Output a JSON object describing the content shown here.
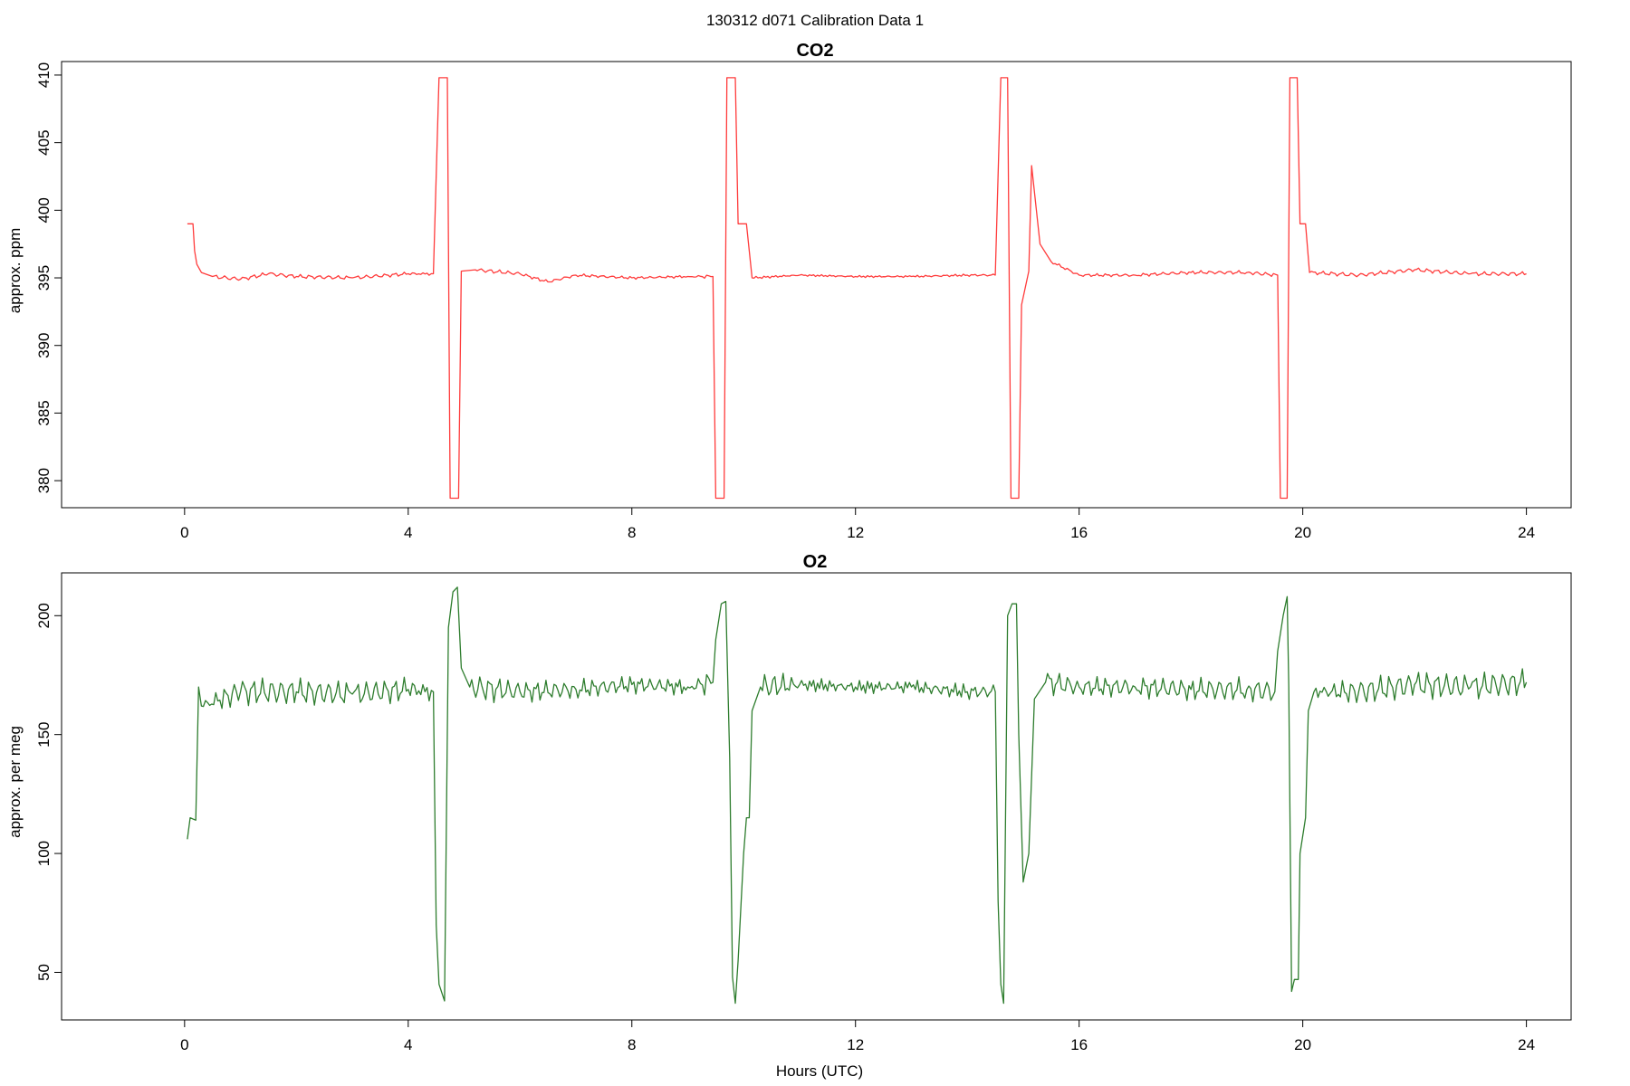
{
  "figure": {
    "suptitle": "130312   d071   Calibration Data 1"
  },
  "chart_data": [
    {
      "type": "line",
      "title": "CO2",
      "xlabel": "",
      "ylabel": "approx. ppm",
      "xlim": [
        -2.2,
        24.8
      ],
      "ylim": [
        378.0,
        411.0
      ],
      "xticks": [
        "0",
        "4",
        "8",
        "12",
        "16",
        "20",
        "24"
      ],
      "yticks": [
        "380",
        "385",
        "390",
        "395",
        "400",
        "405",
        "410"
      ],
      "grid": false,
      "legend": "none",
      "series": [
        {
          "color": "#ff3b3b",
          "points": [
            [
              0.05,
              399.0
            ],
            [
              0.15,
              399.0
            ],
            [
              0.18,
              397.0
            ],
            [
              0.22,
              396.0
            ],
            [
              0.3,
              395.4
            ],
            [
              0.5,
              395.1
            ],
            [
              1.0,
              394.9
            ],
            [
              1.5,
              395.3
            ],
            [
              2.0,
              395.1
            ],
            [
              3.0,
              395.0
            ],
            [
              4.0,
              395.3
            ],
            [
              4.45,
              395.3
            ],
            [
              4.55,
              409.8
            ],
            [
              4.7,
              409.8
            ],
            [
              4.75,
              378.7
            ],
            [
              4.9,
              378.7
            ],
            [
              4.95,
              395.5
            ],
            [
              5.2,
              395.6
            ],
            [
              6.0,
              395.3
            ],
            [
              6.5,
              394.7
            ],
            [
              7.0,
              395.2
            ],
            [
              8.0,
              395.0
            ],
            [
              9.0,
              395.1
            ],
            [
              9.45,
              395.1
            ],
            [
              9.5,
              378.7
            ],
            [
              9.65,
              378.7
            ],
            [
              9.7,
              409.8
            ],
            [
              9.85,
              409.8
            ],
            [
              9.9,
              399.0
            ],
            [
              10.05,
              399.0
            ],
            [
              10.15,
              395.0
            ],
            [
              11.0,
              395.2
            ],
            [
              12.0,
              395.1
            ],
            [
              13.0,
              395.1
            ],
            [
              14.0,
              395.2
            ],
            [
              14.5,
              395.2
            ],
            [
              14.6,
              409.8
            ],
            [
              14.72,
              409.8
            ],
            [
              14.78,
              378.7
            ],
            [
              14.92,
              378.7
            ],
            [
              14.97,
              393.0
            ],
            [
              15.1,
              395.5
            ],
            [
              15.15,
              403.3
            ],
            [
              15.3,
              397.5
            ],
            [
              15.5,
              396.2
            ],
            [
              16.0,
              395.2
            ],
            [
              17.0,
              395.2
            ],
            [
              18.0,
              395.4
            ],
            [
              19.0,
              395.4
            ],
            [
              19.55,
              395.2
            ],
            [
              19.6,
              378.7
            ],
            [
              19.72,
              378.7
            ],
            [
              19.77,
              409.8
            ],
            [
              19.9,
              409.8
            ],
            [
              19.95,
              399.0
            ],
            [
              20.05,
              399.0
            ],
            [
              20.12,
              395.4
            ],
            [
              21.0,
              395.2
            ],
            [
              22.0,
              395.6
            ],
            [
              23.0,
              395.3
            ],
            [
              24.0,
              395.3
            ]
          ]
        }
      ]
    },
    {
      "type": "line",
      "title": "O2",
      "xlabel": "Hours (UTC)",
      "ylabel": "approx. per meg",
      "xlim": [
        -2.2,
        24.8
      ],
      "ylim": [
        30.0,
        218.0
      ],
      "xticks": [
        "0",
        "4",
        "8",
        "12",
        "16",
        "20",
        "24"
      ],
      "yticks": [
        "50",
        "100",
        "150",
        "200"
      ],
      "grid": false,
      "legend": "none",
      "series": [
        {
          "color": "#2e7d2e",
          "points": [
            [
              0.05,
              106
            ],
            [
              0.1,
              115
            ],
            [
              0.2,
              114
            ],
            [
              0.25,
              170
            ],
            [
              0.3,
              162
            ],
            [
              1.0,
              168
            ],
            [
              2.0,
              168
            ],
            [
              3.0,
              167
            ],
            [
              4.0,
              169
            ],
            [
              4.45,
              168
            ],
            [
              4.5,
              70
            ],
            [
              4.55,
              45
            ],
            [
              4.65,
              38
            ],
            [
              4.72,
              195
            ],
            [
              4.8,
              210
            ],
            [
              4.88,
              212
            ],
            [
              4.95,
              178
            ],
            [
              5.1,
              170
            ],
            [
              6.0,
              168
            ],
            [
              7.0,
              169
            ],
            [
              8.0,
              171
            ],
            [
              9.0,
              170
            ],
            [
              9.45,
              172
            ],
            [
              9.5,
              190
            ],
            [
              9.6,
              205
            ],
            [
              9.68,
              206
            ],
            [
              9.75,
              140
            ],
            [
              9.8,
              48
            ],
            [
              9.85,
              37
            ],
            [
              9.9,
              55
            ],
            [
              10.0,
              100
            ],
            [
              10.05,
              115
            ],
            [
              10.1,
              115
            ],
            [
              10.15,
              160
            ],
            [
              10.3,
              170
            ],
            [
              11.0,
              171
            ],
            [
              12.0,
              170
            ],
            [
              13.0,
              170
            ],
            [
              14.0,
              168
            ],
            [
              14.5,
              168
            ],
            [
              14.55,
              80
            ],
            [
              14.6,
              45
            ],
            [
              14.65,
              37
            ],
            [
              14.72,
              200
            ],
            [
              14.8,
              205
            ],
            [
              14.88,
              205
            ],
            [
              14.92,
              150
            ],
            [
              15.0,
              88
            ],
            [
              15.1,
              100
            ],
            [
              15.2,
              165
            ],
            [
              15.4,
              172
            ],
            [
              16.0,
              170
            ],
            [
              17.0,
              170
            ],
            [
              18.0,
              169
            ],
            [
              19.0,
              169
            ],
            [
              19.5,
              168
            ],
            [
              19.55,
              185
            ],
            [
              19.65,
              200
            ],
            [
              19.72,
              208
            ],
            [
              19.75,
              170
            ],
            [
              19.8,
              42
            ],
            [
              19.85,
              47
            ],
            [
              19.92,
              47
            ],
            [
              19.95,
              100
            ],
            [
              20.05,
              115
            ],
            [
              20.1,
              160
            ],
            [
              20.2,
              168
            ],
            [
              21.0,
              168
            ],
            [
              22.0,
              171
            ],
            [
              23.0,
              170
            ],
            [
              24.0,
              172
            ]
          ]
        }
      ]
    }
  ]
}
